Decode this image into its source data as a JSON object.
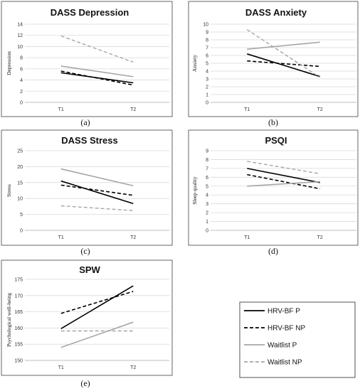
{
  "colors": {
    "hrv_p": "#000000",
    "hrv_np": "#000000",
    "wait_p": "#a6a6a6",
    "wait_np": "#a6a6a6",
    "grid": "#d9d9d9",
    "frame": "#404040"
  },
  "legend": [
    {
      "label": "HRV-BF P",
      "color": "#000000",
      "dashed": false
    },
    {
      "label": "HRV-BF NP",
      "color": "#000000",
      "dashed": true
    },
    {
      "label": "Waitlist P",
      "color": "#a6a6a6",
      "dashed": false
    },
    {
      "label": "Waitlist NP",
      "color": "#a6a6a6",
      "dashed": true
    }
  ],
  "chart_data": [
    {
      "type": "line",
      "title": "DASS Depression",
      "ylabel": "Depression",
      "caption": "(a)",
      "categories": [
        "T1",
        "T2"
      ],
      "ylim": [
        0,
        14
      ],
      "yticks": [
        0,
        2,
        4,
        6,
        8,
        10,
        12,
        14
      ],
      "grid": true,
      "series": [
        {
          "name": "HRV-BF P",
          "values": [
            5.3,
            3.5
          ]
        },
        {
          "name": "HRV-BF NP",
          "values": [
            5.6,
            3.1
          ]
        },
        {
          "name": "Waitlist P",
          "values": [
            6.5,
            4.6
          ]
        },
        {
          "name": "Waitlist NP",
          "values": [
            11.9,
            7.2
          ]
        }
      ]
    },
    {
      "type": "line",
      "title": "DASS Anxiety",
      "ylabel": "Anxiety",
      "caption": "(b)",
      "categories": [
        "T1",
        "T2"
      ],
      "ylim": [
        0,
        10
      ],
      "yticks": [
        0,
        1,
        2,
        3,
        4,
        5,
        6,
        7,
        8,
        9,
        10
      ],
      "grid": true,
      "series": [
        {
          "name": "HRV-BF P",
          "values": [
            6.2,
            3.3
          ]
        },
        {
          "name": "HRV-BF NP",
          "values": [
            5.3,
            4.6
          ]
        },
        {
          "name": "Waitlist P",
          "values": [
            6.8,
            7.7
          ]
        },
        {
          "name": "Waitlist NP",
          "values": [
            9.3,
            3.2
          ]
        }
      ]
    },
    {
      "type": "line",
      "title": "DASS Stress",
      "ylabel": "Stress",
      "caption": "(c)",
      "categories": [
        "T1",
        "T2"
      ],
      "ylim": [
        0,
        25
      ],
      "yticks": [
        0,
        5,
        10,
        15,
        20,
        25
      ],
      "grid": true,
      "series": [
        {
          "name": "HRV-BF P",
          "values": [
            15.5,
            8.4
          ]
        },
        {
          "name": "HRV-BF NP",
          "values": [
            14.2,
            11.0
          ]
        },
        {
          "name": "Waitlist P",
          "values": [
            19.3,
            14.0
          ]
        },
        {
          "name": "Waitlist NP",
          "values": [
            7.7,
            6.2
          ]
        }
      ]
    },
    {
      "type": "line",
      "title": "PSQI",
      "ylabel": "Sleep quality",
      "caption": "(d)",
      "categories": [
        "T1",
        "T2"
      ],
      "ylim": [
        0,
        9
      ],
      "yticks": [
        0,
        1,
        2,
        3,
        4,
        5,
        6,
        7,
        8,
        9
      ],
      "grid": true,
      "series": [
        {
          "name": "HRV-BF P",
          "values": [
            7.0,
            5.4
          ]
        },
        {
          "name": "HRV-BF NP",
          "values": [
            6.3,
            4.7
          ]
        },
        {
          "name": "Waitlist P",
          "values": [
            5.0,
            5.5
          ]
        },
        {
          "name": "Waitlist NP",
          "values": [
            7.8,
            6.4
          ]
        }
      ]
    },
    {
      "type": "line",
      "title": "SPW",
      "ylabel": "Psychological well-being",
      "caption": "(e)",
      "categories": [
        "T1",
        "T2"
      ],
      "ylim": [
        150,
        175
      ],
      "yticks": [
        150,
        155,
        160,
        165,
        170,
        175
      ],
      "grid": true,
      "series": [
        {
          "name": "HRV-BF P",
          "values": [
            159.8,
            173.0
          ]
        },
        {
          "name": "HRV-BF NP",
          "values": [
            164.5,
            171.3
          ]
        },
        {
          "name": "Waitlist P",
          "values": [
            154.0,
            161.8
          ]
        },
        {
          "name": "Waitlist NP",
          "values": [
            159.1,
            159.1
          ]
        }
      ]
    }
  ]
}
